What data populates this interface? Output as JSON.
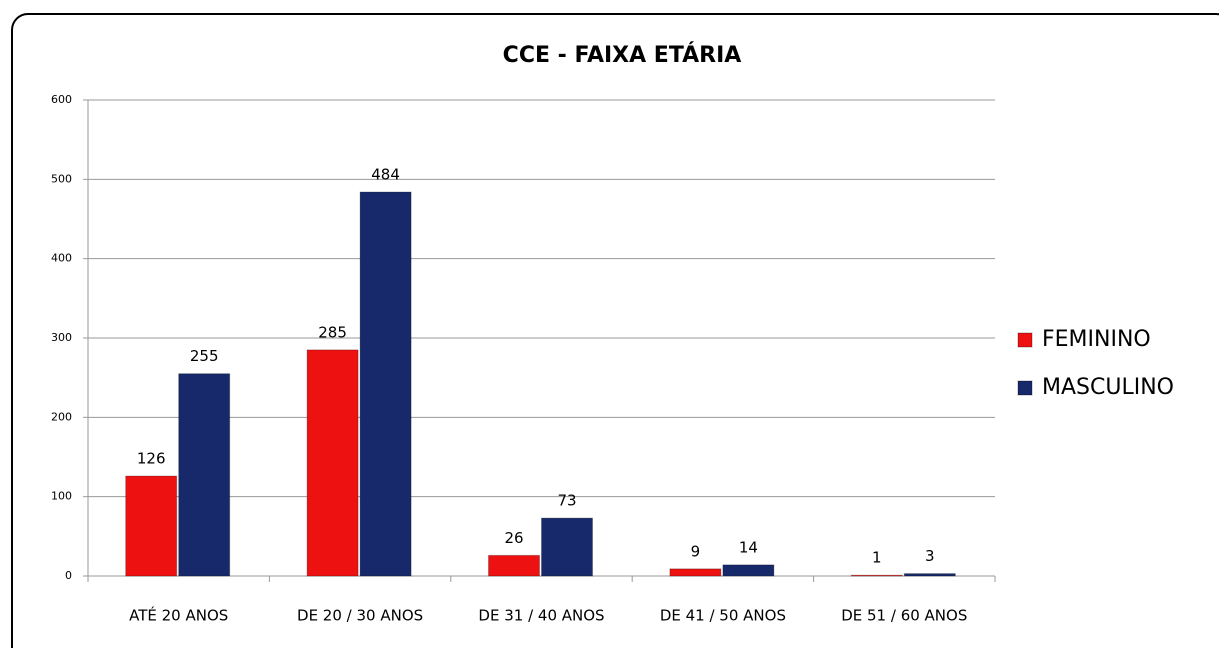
{
  "chart_data": {
    "type": "bar",
    "title": "CCE - FAIXA ETÁRIA",
    "categories": [
      "ATÉ 20 ANOS",
      "DE 20 / 30 ANOS",
      "DE 31 / 40 ANOS",
      "DE 41 / 50 ANOS",
      "DE 51 / 60 ANOS"
    ],
    "series": [
      {
        "name": "FEMININO",
        "color": "#ee1111",
        "values": [
          126,
          285,
          26,
          9,
          1
        ]
      },
      {
        "name": "MASCULINO",
        "color": "#17296a",
        "values": [
          255,
          484,
          73,
          14,
          3
        ]
      }
    ],
    "ylim": [
      0,
      600
    ],
    "yticks": [
      0,
      100,
      200,
      300,
      400,
      500,
      600
    ],
    "grid": true,
    "legend": "right"
  }
}
